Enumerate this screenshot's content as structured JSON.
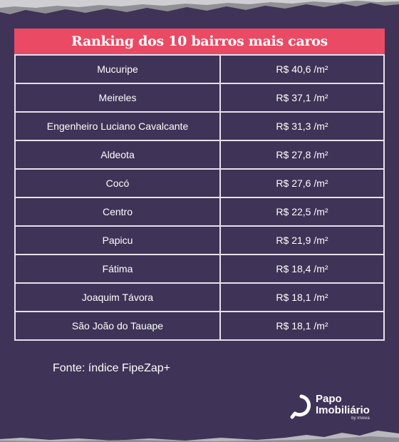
{
  "title": "Ranking dos 10 bairros mais caros",
  "rows": [
    {
      "bairro": "Mucuripe",
      "preco": "R$ 40,6 /m²"
    },
    {
      "bairro": "Meireles",
      "preco": "R$ 37,1 /m²"
    },
    {
      "bairro": "Engenheiro Luciano Cavalcante",
      "preco": "R$ 31,3 /m²"
    },
    {
      "bairro": "Aldeota",
      "preco": "R$ 27,8 /m²"
    },
    {
      "bairro": "Cocó",
      "preco": "R$ 27,6 /m²"
    },
    {
      "bairro": "Centro",
      "preco": "R$ 22,5 /m²"
    },
    {
      "bairro": "Papicu",
      "preco": "R$ 21,9 /m²"
    },
    {
      "bairro": "Fátima",
      "preco": "R$ 18,4 /m²"
    },
    {
      "bairro": "Joaquim Távora",
      "preco": "R$ 18,1 /m²"
    },
    {
      "bairro": "São João do Tauape",
      "preco": "R$ 18,1 /m²"
    }
  ],
  "source": "Fonte: índice FipeZap+",
  "logo": {
    "line1": "Papo",
    "line2": "Imobiliário",
    "line3": "by Imovia"
  },
  "colors": {
    "background": "#3f3357",
    "title_bar": "#ea4a63",
    "grid": "#e6e1ee"
  }
}
